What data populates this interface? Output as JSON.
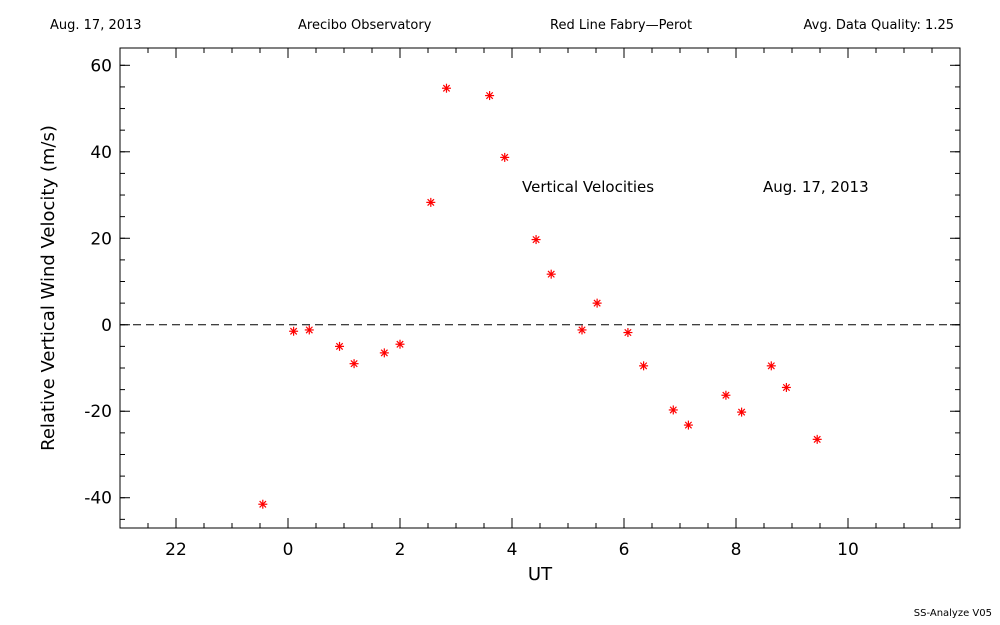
{
  "header": {
    "date": "Aug. 17, 2013",
    "observatory": "Arecibo Observatory",
    "instrument": "Red Line Fabry—Perot",
    "quality": "Avg. Data Quality: 1.25"
  },
  "footer": {
    "version": "SS-Analyze V05"
  },
  "chart_data": {
    "type": "scatter",
    "annotations": [
      "Vertical Velocities",
      "Aug. 17, 2013"
    ],
    "xlabel": "UT",
    "ylabel": "Relative Vertical Wind Velocity (m/s)",
    "x_tick_labels": [
      "22",
      "0",
      "2",
      "4",
      "6",
      "8",
      "10"
    ],
    "x_tick_values": [
      22,
      0,
      2,
      4,
      6,
      8,
      10
    ],
    "y_tick_values": [
      -40,
      -20,
      0,
      20,
      40,
      60
    ],
    "xlim": [
      -3,
      12
    ],
    "ylim": [
      -47,
      64
    ],
    "zero_line": true,
    "marker_color": "#ff0000",
    "points": [
      {
        "x": -0.45,
        "y": -41.5
      },
      {
        "x": 0.1,
        "y": -1.5
      },
      {
        "x": 0.38,
        "y": -1.2
      },
      {
        "x": 0.92,
        "y": -5.0
      },
      {
        "x": 1.18,
        "y": -9.0
      },
      {
        "x": 1.72,
        "y": -6.5
      },
      {
        "x": 2.0,
        "y": -4.5
      },
      {
        "x": 2.55,
        "y": 28.3
      },
      {
        "x": 2.83,
        "y": 54.7
      },
      {
        "x": 3.6,
        "y": 53.0
      },
      {
        "x": 3.87,
        "y": 38.7
      },
      {
        "x": 4.43,
        "y": 19.7
      },
      {
        "x": 4.7,
        "y": 11.7
      },
      {
        "x": 5.25,
        "y": -1.2
      },
      {
        "x": 5.52,
        "y": 5.0
      },
      {
        "x": 6.07,
        "y": -1.8
      },
      {
        "x": 6.35,
        "y": -9.5
      },
      {
        "x": 6.88,
        "y": -19.7
      },
      {
        "x": 7.15,
        "y": -23.2
      },
      {
        "x": 7.82,
        "y": -16.3
      },
      {
        "x": 8.1,
        "y": -20.2
      },
      {
        "x": 8.63,
        "y": -9.5
      },
      {
        "x": 8.9,
        "y": -14.5
      },
      {
        "x": 9.45,
        "y": -26.5
      }
    ]
  }
}
